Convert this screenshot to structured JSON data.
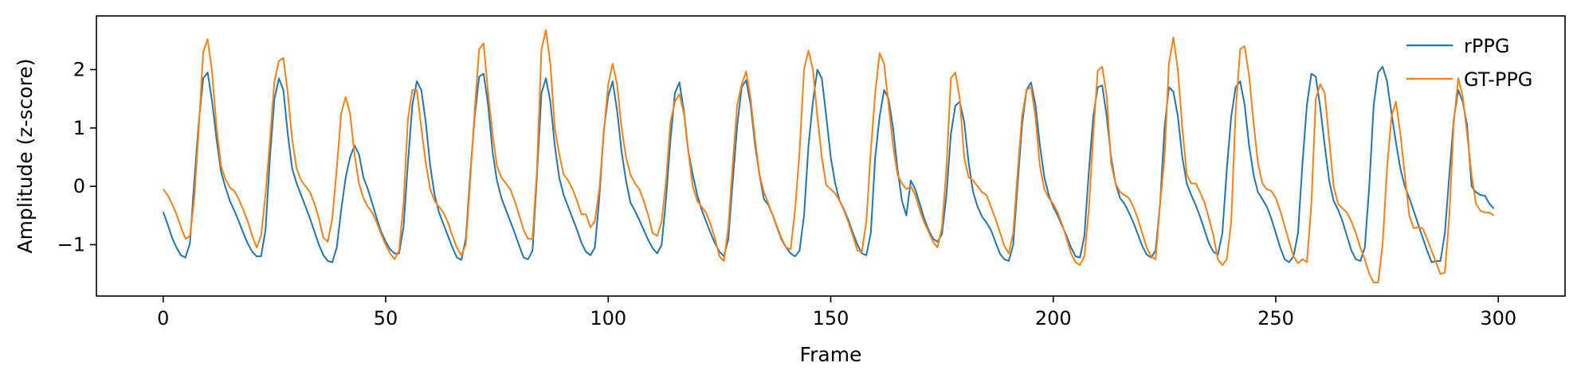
{
  "chart_data": {
    "type": "line",
    "xlabel": "Frame",
    "ylabel": "Amplitude (z-score)",
    "xlim": [
      -15,
      315
    ],
    "ylim": [
      -1.88,
      2.92
    ],
    "xticks": [
      0,
      50,
      100,
      150,
      200,
      250,
      300
    ],
    "yticks": [
      -1,
      0,
      1,
      2
    ],
    "grid": false,
    "legend_position": "top-right",
    "colors": {
      "rPPG": "#1f77b4",
      "GT-PPG": "#ff7f0e"
    },
    "x": {
      "start": 0,
      "end": 299,
      "step": 1
    },
    "series": [
      {
        "name": "rPPG",
        "values": [
          -0.44,
          -0.65,
          -0.88,
          -1.05,
          -1.18,
          -1.22,
          -0.98,
          0.1,
          1.1,
          1.85,
          1.95,
          1.45,
          0.8,
          0.25,
          -0.02,
          -0.25,
          -0.42,
          -0.6,
          -0.8,
          -0.98,
          -1.12,
          -1.2,
          -1.2,
          -0.75,
          0.5,
          1.5,
          1.85,
          1.65,
          0.9,
          0.3,
          0.05,
          -0.15,
          -0.35,
          -0.55,
          -0.78,
          -1.0,
          -1.18,
          -1.28,
          -1.3,
          -1.05,
          -0.4,
          0.15,
          0.5,
          0.7,
          0.55,
          0.15,
          -0.05,
          -0.3,
          -0.55,
          -0.78,
          -0.95,
          -1.08,
          -1.15,
          -1.15,
          -0.7,
          0.4,
          1.4,
          1.8,
          1.65,
          1.1,
          0.35,
          -0.15,
          -0.45,
          -0.65,
          -0.85,
          -1.05,
          -1.22,
          -1.26,
          -0.9,
          0.2,
          1.2,
          1.88,
          1.93,
          1.4,
          0.6,
          0.1,
          -0.2,
          -0.4,
          -0.6,
          -0.8,
          -1.02,
          -1.22,
          -1.25,
          -1.1,
          0.2,
          1.6,
          1.85,
          1.45,
          0.7,
          0.15,
          -0.15,
          -0.35,
          -0.55,
          -0.75,
          -0.97,
          -1.12,
          -1.18,
          -1.05,
          -0.2,
          0.95,
          1.55,
          1.8,
          1.3,
          0.6,
          0.1,
          -0.28,
          -0.42,
          -0.58,
          -0.75,
          -0.92,
          -1.06,
          -1.15,
          -1.0,
          -0.2,
          0.8,
          1.6,
          1.78,
          1.3,
          0.6,
          0.2,
          -0.15,
          -0.4,
          -0.6,
          -0.8,
          -0.98,
          -1.12,
          -1.2,
          -0.9,
          0.1,
          1.05,
          1.7,
          1.82,
          1.4,
          0.7,
          0.2,
          -0.22,
          -0.32,
          -0.5,
          -0.72,
          -0.92,
          -1.05,
          -1.15,
          -1.2,
          -1.1,
          -0.5,
          0.7,
          1.45,
          2.0,
          1.85,
          1.2,
          0.5,
          0.05,
          -0.25,
          -0.4,
          -0.58,
          -0.8,
          -1.0,
          -1.15,
          -1.18,
          -0.8,
          0.5,
          1.2,
          1.65,
          1.5,
          1.0,
          0.3,
          -0.25,
          -0.5,
          0.1,
          -0.05,
          -0.3,
          -0.55,
          -0.75,
          -0.9,
          -0.95,
          -0.82,
          -0.15,
          0.9,
          1.38,
          1.45,
          1.1,
          0.4,
          -0.1,
          -0.35,
          -0.52,
          -0.62,
          -0.75,
          -0.95,
          -1.15,
          -1.25,
          -1.28,
          -1.0,
          0.05,
          1.05,
          1.65,
          1.78,
          1.4,
          0.7,
          0.15,
          -0.15,
          -0.35,
          -0.5,
          -0.68,
          -0.85,
          -1.05,
          -1.2,
          -1.22,
          -0.85,
          0.25,
          1.2,
          1.7,
          1.73,
          1.2,
          0.5,
          0.05,
          -0.2,
          -0.3,
          -0.45,
          -0.62,
          -0.82,
          -1.02,
          -1.17,
          -1.22,
          -1.1,
          -0.3,
          1.0,
          1.7,
          1.62,
          1.2,
          0.5,
          0.05,
          -0.15,
          -0.32,
          -0.52,
          -0.75,
          -0.98,
          -1.12,
          -1.17,
          -0.8,
          0.3,
          1.2,
          1.7,
          1.8,
          1.4,
          0.7,
          0.2,
          -0.1,
          -0.22,
          -0.35,
          -0.55,
          -0.8,
          -1.05,
          -1.25,
          -1.3,
          -1.2,
          -0.8,
          0.4,
          1.4,
          1.93,
          1.88,
          1.35,
          0.7,
          0.1,
          -0.25,
          -0.4,
          -0.6,
          -0.85,
          -1.1,
          -1.25,
          -1.28,
          -1.05,
          0.0,
          1.4,
          1.95,
          2.05,
          1.8,
          1.25,
          0.75,
          0.3,
          0.0,
          -0.2,
          -0.42,
          -0.65,
          -0.88,
          -1.1,
          -1.3,
          -1.28,
          -1.28,
          -0.8,
          0.2,
          1.15,
          1.65,
          1.45,
          1.05,
          0.0,
          -0.1,
          -0.15,
          -0.16,
          -0.3,
          -0.38
        ]
      },
      {
        "name": "GT-PPG",
        "values": [
          -0.05,
          -0.15,
          -0.3,
          -0.48,
          -0.7,
          -0.9,
          -0.85,
          -0.2,
          1.0,
          2.3,
          2.52,
          1.95,
          1.0,
          0.35,
          0.12,
          -0.02,
          -0.08,
          -0.22,
          -0.4,
          -0.6,
          -0.85,
          -1.05,
          -0.85,
          -0.15,
          0.8,
          1.8,
          2.15,
          2.2,
          1.6,
          0.8,
          0.3,
          0.1,
          0.0,
          -0.1,
          -0.3,
          -0.55,
          -0.88,
          -0.95,
          -0.55,
          0.3,
          1.25,
          1.53,
          1.25,
          0.55,
          0.05,
          -0.2,
          -0.35,
          -0.45,
          -0.62,
          -0.82,
          -1.0,
          -1.15,
          -1.25,
          -1.1,
          -0.3,
          1.15,
          1.65,
          1.65,
          1.0,
          0.4,
          -0.05,
          -0.25,
          -0.35,
          -0.45,
          -0.62,
          -0.85,
          -1.05,
          -1.18,
          -1.0,
          0.1,
          1.3,
          2.35,
          2.45,
          1.6,
          0.9,
          0.35,
          0.15,
          0.05,
          -0.05,
          -0.25,
          -0.5,
          -0.75,
          -0.9,
          -0.9,
          0.3,
          2.35,
          2.68,
          2.1,
          1.0,
          0.55,
          0.2,
          0.1,
          -0.05,
          -0.25,
          -0.48,
          -0.48,
          -0.7,
          -0.6,
          -0.05,
          0.9,
          1.75,
          2.1,
          1.75,
          1.0,
          0.5,
          0.2,
          0.05,
          -0.05,
          -0.25,
          -0.5,
          -0.8,
          -0.85,
          -0.6,
          0.1,
          1.1,
          1.45,
          1.58,
          1.25,
          0.6,
          0.0,
          -0.25,
          -0.35,
          -0.45,
          -0.65,
          -0.9,
          -1.2,
          -1.28,
          -0.7,
          0.4,
          1.4,
          1.75,
          1.97,
          1.5,
          0.8,
          0.2,
          -0.1,
          -0.3,
          -0.5,
          -0.7,
          -0.9,
          -1.05,
          -1.08,
          -0.4,
          0.6,
          2.0,
          2.33,
          2.0,
          1.2,
          0.5,
          0.02,
          -0.05,
          -0.12,
          -0.25,
          -0.42,
          -0.62,
          -0.85,
          -1.1,
          -1.12,
          -0.6,
          0.6,
          1.6,
          2.28,
          2.1,
          1.4,
          0.7,
          0.2,
          0.05,
          -0.05,
          0.0,
          -0.15,
          -0.4,
          -0.62,
          -0.78,
          -0.95,
          -1.05,
          -0.7,
          0.3,
          1.85,
          1.95,
          1.5,
          0.5,
          0.15,
          0.1,
          0.0,
          -0.1,
          -0.15,
          -0.35,
          -0.55,
          -0.78,
          -1.02,
          -1.15,
          -0.8,
          0.25,
          1.2,
          1.65,
          1.7,
          1.2,
          0.35,
          -0.05,
          -0.2,
          -0.3,
          -0.45,
          -0.65,
          -0.9,
          -1.15,
          -1.3,
          -1.35,
          -1.2,
          -0.4,
          0.9,
          1.98,
          2.05,
          1.55,
          0.4,
          0.05,
          -0.1,
          -0.15,
          -0.2,
          -0.35,
          -0.55,
          -0.8,
          -1.05,
          -1.2,
          -1.25,
          -0.3,
          0.5,
          2.1,
          2.55,
          2.0,
          1.0,
          0.2,
          0.05,
          0.05,
          -0.1,
          -0.28,
          -0.55,
          -0.85,
          -1.25,
          -1.35,
          -1.25,
          -0.6,
          1.3,
          2.35,
          2.4,
          1.9,
          1.1,
          0.4,
          0.05,
          -0.05,
          -0.08,
          -0.2,
          -0.42,
          -0.68,
          -0.95,
          -1.2,
          -1.32,
          -1.25,
          -1.3,
          -0.3,
          1.5,
          1.75,
          1.6,
          0.8,
          0.0,
          -0.3,
          -0.38,
          -0.45,
          -0.6,
          -0.8,
          -1.05,
          -1.25,
          -1.5,
          -1.65,
          -1.65,
          -1.0,
          0.3,
          1.2,
          1.45,
          0.9,
          0.2,
          -0.5,
          -0.72,
          -0.7,
          -0.72,
          -0.9,
          -1.1,
          -1.3,
          -1.5,
          -1.48,
          -0.5,
          1.1,
          1.85,
          1.55,
          0.9,
          0.2,
          -0.3,
          -0.42,
          -0.45,
          -0.45,
          -0.5
        ]
      }
    ]
  }
}
